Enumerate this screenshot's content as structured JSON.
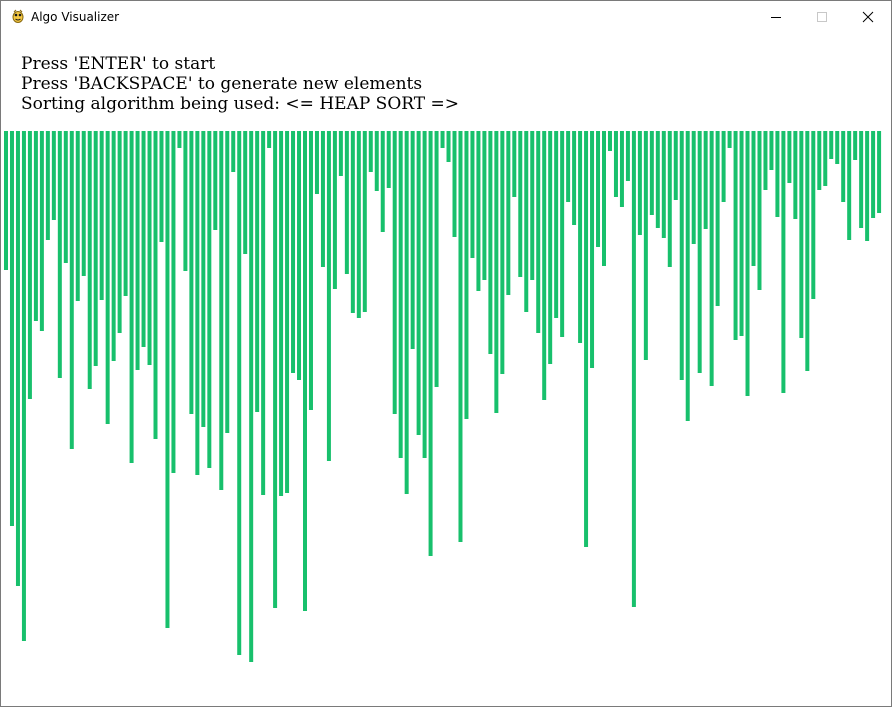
{
  "window": {
    "title": "Algo Visualizer",
    "icon": "pygame-snake-icon",
    "controls": [
      "minimize-icon",
      "maximize-icon",
      "close-icon"
    ]
  },
  "instructions": {
    "line1": "Press 'ENTER' to start",
    "line2": "Press 'BACKSPACE' to generate new elements",
    "line3": "Sorting algorithm being used: <= HEAP SORT =>"
  },
  "visualizer": {
    "algorithm": "HEAP SORT",
    "bar_color": "#18c06c",
    "element_count": 147,
    "values": [
      139,
      395,
      455,
      510,
      268,
      190,
      200,
      109,
      89,
      247,
      132,
      318,
      170,
      145,
      258,
      235,
      169,
      293,
      230,
      202,
      165,
      332,
      239,
      216,
      234,
      308,
      111,
      497,
      342,
      17,
      140,
      283,
      344,
      296,
      337,
      99,
      359,
      302,
      41,
      524,
      123,
      531,
      281,
      364,
      17,
      477,
      365,
      362,
      242,
      249,
      480,
      279,
      63,
      136,
      330,
      158,
      45,
      143,
      182,
      187,
      181,
      41,
      60,
      101,
      57,
      283,
      327,
      363,
      218,
      304,
      327,
      425,
      256,
      17,
      31,
      106,
      411,
      288,
      127,
      160,
      149,
      223,
      282,
      243,
      164,
      66,
      146,
      181,
      149,
      202,
      269,
      233,
      187,
      206,
      71,
      94,
      212,
      416,
      237,
      116,
      135,
      20,
      66,
      76,
      50,
      476,
      104,
      229,
      84,
      97,
      107,
      136,
      69,
      249,
      290,
      113,
      242,
      98,
      255,
      175,
      71,
      17,
      209,
      205,
      265,
      135,
      159,
      59,
      39,
      86,
      262,
      52,
      88,
      207,
      240,
      168,
      59,
      55,
      28,
      33,
      71,
      109,
      29,
      97,
      110,
      87,
      82
    ]
  }
}
